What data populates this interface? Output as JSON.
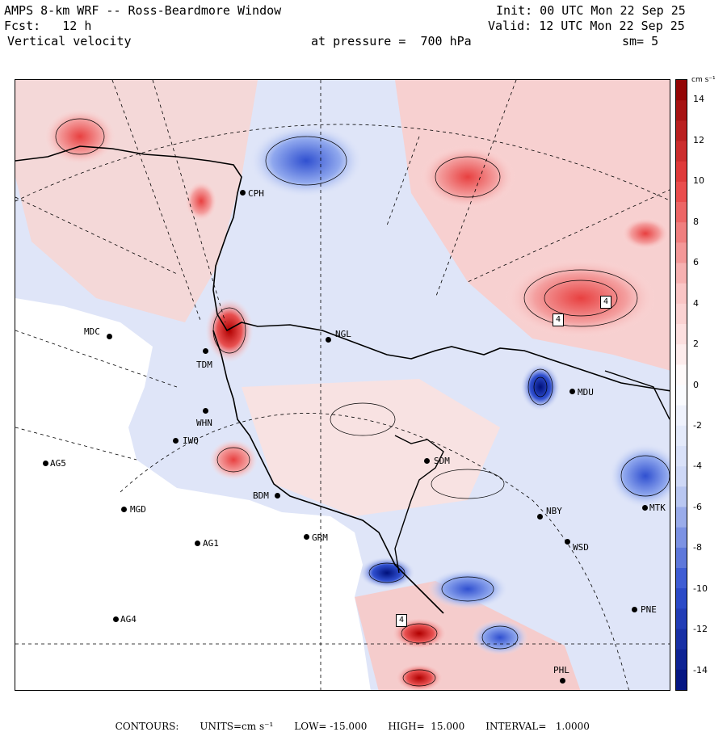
{
  "header": {
    "line1_left": "AMPS 8-km WRF -- Ross-Beardmore Window",
    "line1_right": "Init: 00 UTC Mon 22 Sep 25",
    "line2_left": "Fcst:   12 h",
    "line2_right": "Valid: 12 UTC Mon 22 Sep 25",
    "line3_left": "Vertical velocity",
    "line3_mid": "at pressure =  700 hPa",
    "line3_right": "sm= 5"
  },
  "map": {
    "stations": [
      {
        "code": "CPH"
      },
      {
        "code": "MDC"
      },
      {
        "code": "NGL"
      },
      {
        "code": "TDM"
      },
      {
        "code": "MDU"
      },
      {
        "code": "WHN"
      },
      {
        "code": "IWQ"
      },
      {
        "code": "AG5"
      },
      {
        "code": "SDM"
      },
      {
        "code": "BDM"
      },
      {
        "code": "MGD"
      },
      {
        "code": "NBY"
      },
      {
        "code": "MTK"
      },
      {
        "code": "AG1"
      },
      {
        "code": "GRM"
      },
      {
        "code": "WSD"
      },
      {
        "code": "AG4"
      },
      {
        "code": "PNE"
      },
      {
        "code": "PHL"
      }
    ],
    "highs": [
      "4",
      "4",
      "4"
    ],
    "colors": {
      "strong_pos": "#8b0000",
      "pos": "#e84040",
      "weak_pos": "#f8c8c8",
      "zero": "#ffffff",
      "weak_neg": "#dde4f8",
      "neg": "#5070e0",
      "strong_neg": "#00107a",
      "land": "#ffffff",
      "coast": "#000000"
    }
  },
  "colorbar": {
    "units": "cm s⁻¹",
    "ticks": [
      "14",
      "12",
      "10",
      "8",
      "6",
      "4",
      "2",
      "0",
      "-2",
      "-4",
      "-6",
      "-8",
      "-10",
      "-12",
      "-14"
    ],
    "range": [
      -15,
      15
    ]
  },
  "footer": {
    "contours": "CONTOURS:",
    "units": "UNITS=cm s⁻¹",
    "low": "LOW= -15.000",
    "high": "HIGH=  15.000",
    "interval": "INTERVAL=   1.0000"
  }
}
